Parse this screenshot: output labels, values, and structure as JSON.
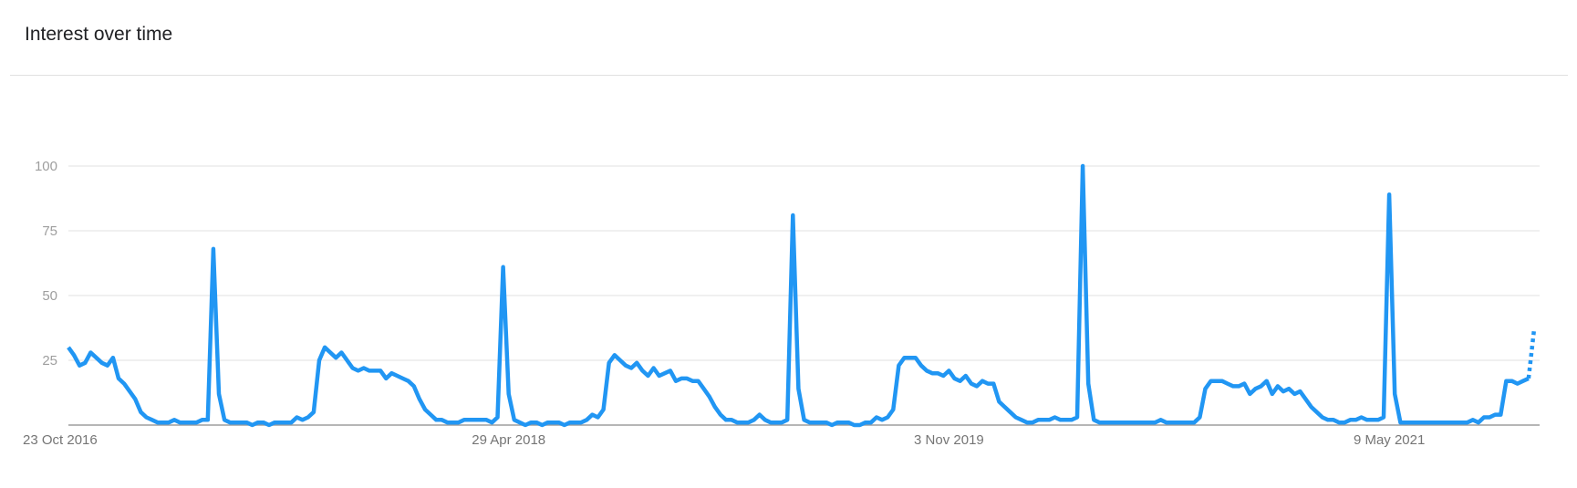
{
  "header": {
    "title": "Interest over time"
  },
  "chart_data": {
    "type": "line",
    "title": "Interest over time",
    "x_start": "2016-10-23",
    "frequency": "weekly",
    "x_tick_labels": [
      "23 Oct 2016",
      "29 Apr 2018",
      "3 Nov 2019",
      "9 May 2021"
    ],
    "x_tick_dates": [
      "2016-10-23",
      "2018-04-29",
      "2019-11-03",
      "2021-05-09"
    ],
    "y_ticks": [
      25,
      50,
      75,
      100
    ],
    "ylim": [
      0,
      100
    ],
    "grid": true,
    "line_color": "#2196f3",
    "last_point_partial": true,
    "values": [
      30,
      27,
      23,
      24,
      28,
      26,
      24,
      23,
      26,
      18,
      16,
      13,
      10,
      5,
      3,
      2,
      1,
      1,
      1,
      2,
      1,
      1,
      1,
      1,
      2,
      2,
      68,
      12,
      2,
      1,
      1,
      1,
      1,
      0,
      1,
      1,
      0,
      1,
      1,
      1,
      1,
      3,
      2,
      3,
      5,
      25,
      30,
      28,
      26,
      28,
      25,
      22,
      21,
      22,
      21,
      21,
      21,
      18,
      20,
      19,
      18,
      17,
      15,
      10,
      6,
      4,
      2,
      2,
      1,
      1,
      1,
      2,
      2,
      2,
      2,
      2,
      1,
      3,
      61,
      12,
      2,
      1,
      0,
      1,
      1,
      0,
      1,
      1,
      1,
      0,
      1,
      1,
      1,
      2,
      4,
      3,
      6,
      24,
      27,
      25,
      23,
      22,
      24,
      21,
      19,
      22,
      19,
      20,
      21,
      17,
      18,
      18,
      17,
      17,
      14,
      11,
      7,
      4,
      2,
      2,
      1,
      1,
      1,
      2,
      4,
      2,
      1,
      1,
      1,
      2,
      81,
      14,
      2,
      1,
      1,
      1,
      1,
      0,
      1,
      1,
      1,
      0,
      0,
      1,
      1,
      3,
      2,
      3,
      6,
      23,
      26,
      26,
      26,
      23,
      21,
      20,
      20,
      19,
      21,
      18,
      17,
      19,
      16,
      15,
      17,
      16,
      16,
      9,
      7,
      5,
      3,
      2,
      1,
      1,
      2,
      2,
      2,
      3,
      2,
      2,
      2,
      3,
      100,
      16,
      2,
      1,
      1,
      1,
      1,
      1,
      1,
      1,
      1,
      1,
      1,
      1,
      2,
      1,
      1,
      1,
      1,
      1,
      1,
      3,
      14,
      17,
      17,
      17,
      16,
      15,
      15,
      16,
      12,
      14,
      15,
      17,
      12,
      15,
      13,
      14,
      12,
      13,
      10,
      7,
      5,
      3,
      2,
      2,
      1,
      1,
      2,
      2,
      3,
      2,
      2,
      2,
      3,
      89,
      12,
      1,
      1,
      1,
      1,
      1,
      1,
      1,
      1,
      1,
      1,
      1,
      1,
      1,
      2,
      1,
      3,
      3,
      4,
      4,
      17,
      17,
      16,
      17,
      18,
      37
    ]
  }
}
